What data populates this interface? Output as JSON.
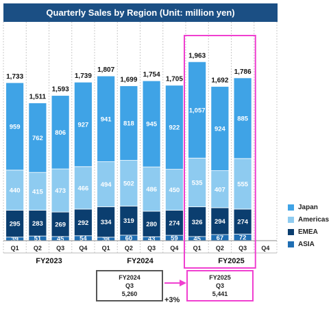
{
  "chart_data": {
    "type": "bar",
    "stacked": true,
    "title": "Quarterly Sales by Region (Unit: million yen)",
    "categories": [
      "Q1",
      "Q2",
      "Q3",
      "Q4",
      "Q1",
      "Q2",
      "Q3",
      "Q4",
      "Q1",
      "Q2",
      "Q3",
      "Q4"
    ],
    "groups": [
      {
        "label": "FY2023",
        "count": 4
      },
      {
        "label": "FY2024",
        "count": 4
      },
      {
        "label": "FY2025",
        "count": 4
      }
    ],
    "totals": [
      1733,
      1511,
      1593,
      1739,
      1807,
      1699,
      1754,
      1705,
      1963,
      1692,
      1786,
      null
    ],
    "total_labels": [
      "1,733",
      "1,511",
      "1,593",
      "1,739",
      "1,807",
      "1,699",
      "1,754",
      "1,705",
      "1,963",
      "1,692",
      "1,786",
      ""
    ],
    "series": [
      {
        "name": "ASIA",
        "color": "#1f6eb3",
        "values": [
          39,
          51,
          45,
          54,
          38,
          60,
          43,
          59,
          45,
          67,
          72,
          null
        ]
      },
      {
        "name": "EMEA",
        "color": "#0b3e6f",
        "values": [
          295,
          283,
          269,
          292,
          334,
          319,
          280,
          274,
          326,
          294,
          274,
          null
        ]
      },
      {
        "name": "Americas",
        "color": "#8ecbf0",
        "values": [
          440,
          415,
          473,
          466,
          494,
          502,
          486,
          450,
          535,
          407,
          555,
          null
        ]
      },
      {
        "name": "Japan",
        "color": "#3fa3e6",
        "values": [
          959,
          762,
          806,
          927,
          941,
          818,
          945,
          922,
          1057,
          924,
          885,
          null
        ]
      }
    ],
    "legend_order": [
      "Japan",
      "Americas",
      "EMEA",
      "ASIA"
    ],
    "legend_placement": "right",
    "highlight_color": "#f03fd0",
    "highlight_group": "FY2025",
    "comparison": {
      "left": {
        "line1": "FY2024",
        "line2": "Q3",
        "value": "5,260"
      },
      "right": {
        "line1": "FY2025",
        "line2": "Q3",
        "value": "5,441"
      },
      "change": "+3%"
    }
  }
}
